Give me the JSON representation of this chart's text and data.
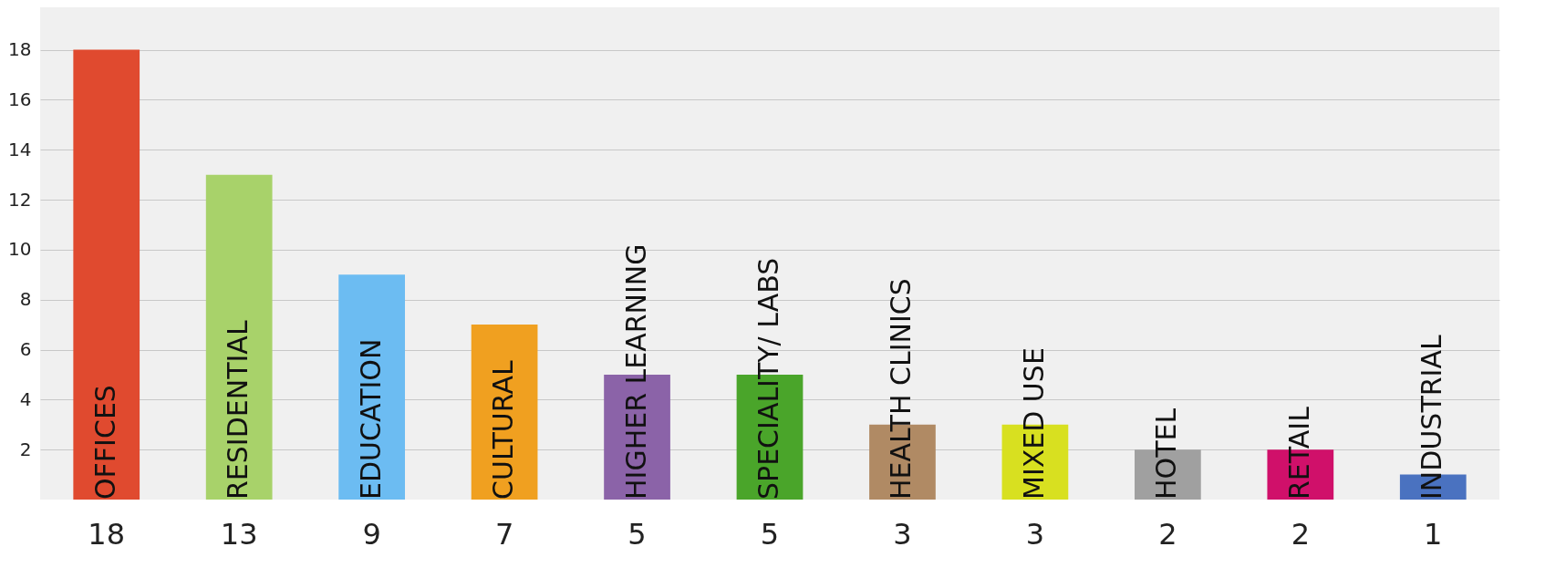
{
  "chart_data": {
    "type": "bar",
    "categories": [
      "OFFICES",
      "RESIDENTIAL",
      "EDUCATION",
      "CULTURAL",
      "HIGHER LEARNING",
      "SPECIALITY/ LABS",
      "HEALTH CLINICS",
      "MIXED USE",
      "HOTEL",
      "RETAIL",
      "INDUSTRIAL"
    ],
    "values": [
      18,
      13,
      9,
      7,
      5,
      5,
      3,
      3,
      2,
      2,
      1
    ],
    "colors": [
      "#e04a2f",
      "#a8d26a",
      "#6cbcf2",
      "#f0a020",
      "#8b63a8",
      "#4aa52a",
      "#b08a64",
      "#d8e020",
      "#a0a0a0",
      "#d0106a",
      "#4a72c0"
    ],
    "ylim": [
      0,
      19.7
    ],
    "yticks": [
      2,
      4,
      6,
      8,
      10,
      12,
      14,
      16,
      18
    ],
    "grid": "y",
    "data_labels": true,
    "tick_labels": "y"
  }
}
